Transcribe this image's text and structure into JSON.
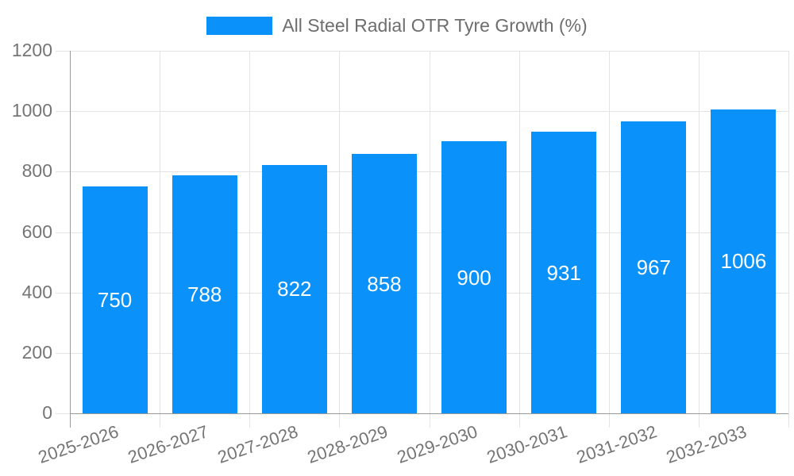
{
  "chart_data": {
    "type": "bar",
    "title": "All Steel Radial OTR Tyre Growth (%)",
    "series_name": "All Steel Radial OTR Tyre Growth (%)",
    "categories": [
      "2025-2026",
      "2026-2027",
      "2027-2028",
      "2028-2029",
      "2029-2030",
      "2030-2031",
      "2031-2032",
      "2032-2033"
    ],
    "values": [
      750,
      788,
      822,
      858,
      900,
      931,
      967,
      1006
    ],
    "bar_labels": [
      "750",
      "788",
      "822",
      "858",
      "900",
      "931",
      "967",
      "1006"
    ],
    "ylim": [
      0,
      1200
    ],
    "yticks": [
      0,
      200,
      400,
      600,
      800,
      1000,
      1200
    ],
    "ytick_labels": [
      "0",
      "200",
      "400",
      "600",
      "800",
      "1000",
      "1200"
    ],
    "xlabel": "",
    "ylabel": "",
    "grid": true,
    "legend_position": "top-center",
    "value_label_position": "inside-center"
  },
  "colors": {
    "bar": "#0a91fa",
    "bar_label": "#ffffff",
    "axis_text": "#757575",
    "legend_text": "#6e6e6e",
    "grid_line": "#e3e3e3",
    "axis_line": "#9a9a9a",
    "background": "#ffffff"
  }
}
